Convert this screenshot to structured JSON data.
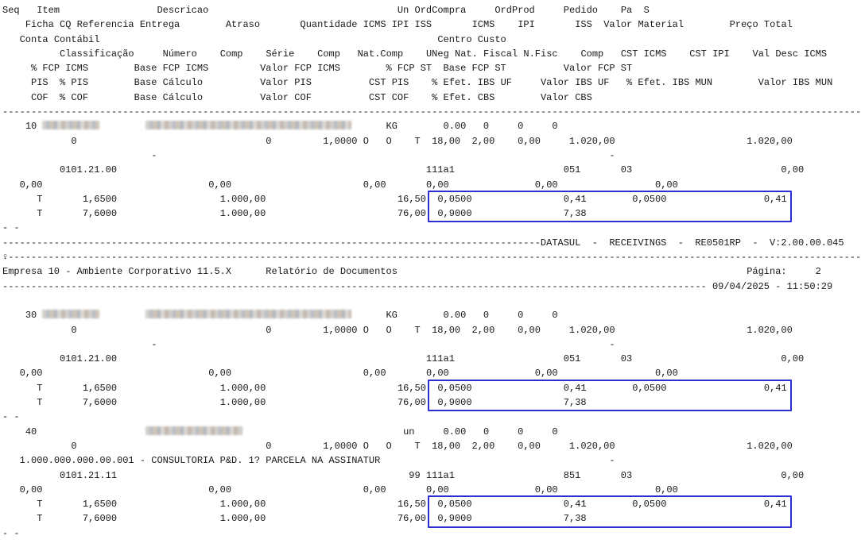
{
  "report": {
    "system_banner": "DATASUL  -  RECEIVINGS  -  RE0501RP  -  V:2.00.00.045",
    "company_line": "Empresa 10 - Ambiente Corporativo 11.5.X",
    "report_title": "Relatório de Documentos",
    "page_label": "Página:",
    "page_number": "2",
    "datetime": "09/04/2025 - 11:50:29",
    "highlight_color": "#2d2dd2",
    "highlight_boxes": [
      {
        "line_from": 13,
        "line_to": 14
      },
      {
        "line_from": 26,
        "line_to": 27
      },
      {
        "line_from": 34,
        "line_to": 35
      }
    ],
    "lines": [
      {
        "s": [
          {
            "t": "Seq"
          },
          {
            "p": 3
          },
          {
            "t": "Item"
          },
          {
            "p": 17
          },
          {
            "t": "Descricao"
          },
          {
            "p": 33
          },
          {
            "t": "Un OrdCompra"
          },
          {
            "p": 5
          },
          {
            "t": "OrdProd"
          },
          {
            "p": 5
          },
          {
            "t": "Pedido"
          },
          {
            "p": 4
          },
          {
            "t": "Pa"
          },
          {
            "p": 2
          },
          {
            "t": "S"
          }
        ]
      },
      {
        "s": [
          {
            "p": 4
          },
          {
            "t": "Ficha CQ Referencia Entrega"
          },
          {
            "p": 8
          },
          {
            "t": "Atraso"
          },
          {
            "p": 7
          },
          {
            "t": "Quantidade ICMS IPI ISS"
          },
          {
            "p": 7
          },
          {
            "t": "ICMS"
          },
          {
            "p": 4
          },
          {
            "t": "IPI"
          },
          {
            "p": 7
          },
          {
            "t": "ISS"
          },
          {
            "p": 2
          },
          {
            "t": "Valor Material"
          },
          {
            "p": 8
          },
          {
            "t": "Preço Total"
          }
        ]
      },
      {
        "s": [
          {
            "p": 3
          },
          {
            "t": "Conta Contábil"
          },
          {
            "p": 59
          },
          {
            "t": "Centro Custo"
          }
        ]
      },
      {
        "s": [
          {
            "p": 10
          },
          {
            "t": "Classificação"
          },
          {
            "p": 5
          },
          {
            "t": "Número"
          },
          {
            "p": 4
          },
          {
            "t": "Comp"
          },
          {
            "p": 4
          },
          {
            "t": "Série"
          },
          {
            "p": 4
          },
          {
            "t": "Comp"
          },
          {
            "p": 3
          },
          {
            "t": "Nat.Comp"
          },
          {
            "p": 4
          },
          {
            "t": "UNeg Nat. Fiscal N.Fisc"
          },
          {
            "p": 4
          },
          {
            "t": "Comp"
          },
          {
            "p": 3
          },
          {
            "t": "CST ICMS"
          },
          {
            "p": 4
          },
          {
            "t": "CST IPI"
          },
          {
            "p": 4
          },
          {
            "t": "Val Desc ICMS"
          }
        ]
      },
      {
        "s": [
          {
            "p": 5
          },
          {
            "t": "% FCP ICMS"
          },
          {
            "p": 8
          },
          {
            "t": "Base FCP ICMS"
          },
          {
            "p": 9
          },
          {
            "t": "Valor FCP ICMS"
          },
          {
            "p": 8
          },
          {
            "t": "% FCP ST"
          },
          {
            "p": 2
          },
          {
            "t": "Base FCP ST"
          },
          {
            "p": 10
          },
          {
            "t": "Valor FCP ST"
          }
        ]
      },
      {
        "s": [
          {
            "p": 5
          },
          {
            "t": "PIS"
          },
          {
            "p": 2
          },
          {
            "t": "% PIS"
          },
          {
            "p": 8
          },
          {
            "t": "Base Cálculo"
          },
          {
            "p": 10
          },
          {
            "t": "Valor PIS"
          },
          {
            "p": 10
          },
          {
            "t": "CST PIS"
          },
          {
            "p": 4
          },
          {
            "t": "% Efet. IBS UF"
          },
          {
            "p": 5
          },
          {
            "t": "Valor IBS UF"
          },
          {
            "p": 3
          },
          {
            "t": "% Efet. IBS MUN"
          },
          {
            "p": 8
          },
          {
            "t": "Valor IBS MUN"
          }
        ]
      },
      {
        "s": [
          {
            "p": 5
          },
          {
            "t": "COF"
          },
          {
            "p": 2
          },
          {
            "t": "% COF"
          },
          {
            "p": 8
          },
          {
            "t": "Base Cálculo"
          },
          {
            "p": 10
          },
          {
            "t": "Valor COF"
          },
          {
            "p": 10
          },
          {
            "t": "CST COF"
          },
          {
            "p": 4
          },
          {
            "t": "% Efet. CBS"
          },
          {
            "p": 8
          },
          {
            "t": "Valor CBS"
          }
        ]
      },
      {
        "s": [
          {
            "d": 150
          }
        ]
      },
      {
        "s": [
          {
            "p": 4
          },
          {
            "t": "10"
          },
          {
            "p": 1
          },
          {
            "b": 10
          },
          {
            "p": 8
          },
          {
            "b": 36
          },
          {
            "p": 6
          },
          {
            "t": "KG"
          },
          {
            "p": 8
          },
          {
            "t": "0.00"
          },
          {
            "p": 3
          },
          {
            "t": "0"
          },
          {
            "p": 5
          },
          {
            "t": "0"
          },
          {
            "p": 5
          },
          {
            "t": "0"
          }
        ]
      },
      {
        "s": [
          {
            "p": 12
          },
          {
            "t": "0"
          },
          {
            "p": 33
          },
          {
            "t": "0"
          },
          {
            "p": 9
          },
          {
            "t": "1,0000 O   O    T  18,00  2,00    0,00     1.020,00"
          },
          {
            "p": 23
          },
          {
            "t": "1.020,00"
          }
        ]
      },
      {
        "s": [
          {
            "p": 26
          },
          {
            "t": "-"
          },
          {
            "p": 79
          },
          {
            "t": "-"
          }
        ]
      },
      {
        "s": [
          {
            "p": 10
          },
          {
            "t": "0101.21.00"
          },
          {
            "p": 54
          },
          {
            "t": "111a1"
          },
          {
            "p": 19
          },
          {
            "t": "051"
          },
          {
            "p": 7
          },
          {
            "t": "03"
          },
          {
            "p": 26
          },
          {
            "t": "0,00"
          }
        ]
      },
      {
        "s": [
          {
            "p": 3
          },
          {
            "t": "0,00"
          },
          {
            "p": 29
          },
          {
            "t": "0,00"
          },
          {
            "p": 23
          },
          {
            "t": "0,00"
          },
          {
            "p": 7
          },
          {
            "t": "0,00"
          },
          {
            "p": 15
          },
          {
            "t": "0,00"
          },
          {
            "p": 17
          },
          {
            "t": "0,00"
          }
        ]
      },
      {
        "s": [
          {
            "p": 6
          },
          {
            "t": "T"
          },
          {
            "p": 7
          },
          {
            "t": "1,6500"
          },
          {
            "p": 18
          },
          {
            "t": "1.000,00"
          },
          {
            "p": 23
          },
          {
            "t": "16,50"
          },
          {
            "p": 2
          },
          {
            "t": "0,0500"
          },
          {
            "p": 16
          },
          {
            "t": "0,41"
          },
          {
            "p": 8
          },
          {
            "t": "0,0500"
          },
          {
            "p": 17
          },
          {
            "t": "0,41"
          }
        ]
      },
      {
        "s": [
          {
            "p": 6
          },
          {
            "t": "T"
          },
          {
            "p": 7
          },
          {
            "t": "7,6000"
          },
          {
            "p": 18
          },
          {
            "t": "1.000,00"
          },
          {
            "p": 23
          },
          {
            "t": "76,00"
          },
          {
            "p": 2
          },
          {
            "t": "0,9000"
          },
          {
            "p": 16
          },
          {
            "t": "7,38"
          }
        ]
      },
      {
        "s": [
          {
            "t": "- -"
          }
        ]
      },
      {
        "s": [
          {
            "d": 94
          },
          {
            "t": "DATASUL  -  RECEIVINGS  -  RE0501RP  -  V:2.00.00.045"
          }
        ]
      },
      {
        "s": [
          {
            "t": "♀"
          },
          {
            "d": 149
          }
        ]
      },
      {
        "s": [
          {
            "t": "Empresa 10 - Ambiente Corporativo 11.5.X"
          },
          {
            "p": 6
          },
          {
            "t": "Relatório de Documentos"
          },
          {
            "p": 61
          },
          {
            "t": "Página:"
          },
          {
            "p": 5
          },
          {
            "t": "2"
          }
        ]
      },
      {
        "s": [
          {
            "d": 123
          },
          {
            "p": 1
          },
          {
            "t": "09/04/2025 - 11:50:29"
          }
        ]
      },
      {
        "s": []
      },
      {
        "s": [
          {
            "p": 4
          },
          {
            "t": "30"
          },
          {
            "p": 1
          },
          {
            "b": 10
          },
          {
            "p": 8
          },
          {
            "b": 36
          },
          {
            "p": 6
          },
          {
            "t": "KG"
          },
          {
            "p": 8
          },
          {
            "t": "0.00"
          },
          {
            "p": 3
          },
          {
            "t": "0"
          },
          {
            "p": 5
          },
          {
            "t": "0"
          },
          {
            "p": 5
          },
          {
            "t": "0"
          }
        ]
      },
      {
        "s": [
          {
            "p": 12
          },
          {
            "t": "0"
          },
          {
            "p": 33
          },
          {
            "t": "0"
          },
          {
            "p": 9
          },
          {
            "t": "1,0000 O   O    T  18,00  2,00    0,00     1.020,00"
          },
          {
            "p": 23
          },
          {
            "t": "1.020,00"
          }
        ]
      },
      {
        "s": [
          {
            "p": 26
          },
          {
            "t": "-"
          },
          {
            "p": 79
          },
          {
            "t": "-"
          }
        ]
      },
      {
        "s": [
          {
            "p": 10
          },
          {
            "t": "0101.21.00"
          },
          {
            "p": 54
          },
          {
            "t": "111a1"
          },
          {
            "p": 19
          },
          {
            "t": "051"
          },
          {
            "p": 7
          },
          {
            "t": "03"
          },
          {
            "p": 26
          },
          {
            "t": "0,00"
          }
        ]
      },
      {
        "s": [
          {
            "p": 3
          },
          {
            "t": "0,00"
          },
          {
            "p": 29
          },
          {
            "t": "0,00"
          },
          {
            "p": 23
          },
          {
            "t": "0,00"
          },
          {
            "p": 7
          },
          {
            "t": "0,00"
          },
          {
            "p": 15
          },
          {
            "t": "0,00"
          },
          {
            "p": 17
          },
          {
            "t": "0,00"
          }
        ]
      },
      {
        "s": [
          {
            "p": 6
          },
          {
            "t": "T"
          },
          {
            "p": 7
          },
          {
            "t": "1,6500"
          },
          {
            "p": 18
          },
          {
            "t": "1.000,00"
          },
          {
            "p": 23
          },
          {
            "t": "16,50"
          },
          {
            "p": 2
          },
          {
            "t": "0,0500"
          },
          {
            "p": 16
          },
          {
            "t": "0,41"
          },
          {
            "p": 8
          },
          {
            "t": "0,0500"
          },
          {
            "p": 17
          },
          {
            "t": "0,41"
          }
        ]
      },
      {
        "s": [
          {
            "p": 6
          },
          {
            "t": "T"
          },
          {
            "p": 7
          },
          {
            "t": "7,6000"
          },
          {
            "p": 18
          },
          {
            "t": "1.000,00"
          },
          {
            "p": 23
          },
          {
            "t": "76,00"
          },
          {
            "p": 2
          },
          {
            "t": "0,9000"
          },
          {
            "p": 16
          },
          {
            "t": "7,38"
          }
        ]
      },
      {
        "s": [
          {
            "t": "- -"
          }
        ]
      },
      {
        "s": [
          {
            "p": 4
          },
          {
            "t": "40"
          },
          {
            "p": 19
          },
          {
            "b": 17
          },
          {
            "p": 28
          },
          {
            "t": "un"
          },
          {
            "p": 5
          },
          {
            "t": "0.00"
          },
          {
            "p": 3
          },
          {
            "t": "0"
          },
          {
            "p": 5
          },
          {
            "t": "0"
          },
          {
            "p": 5
          },
          {
            "t": "0"
          }
        ]
      },
      {
        "s": [
          {
            "p": 12
          },
          {
            "t": "0"
          },
          {
            "p": 33
          },
          {
            "t": "0"
          },
          {
            "p": 9
          },
          {
            "t": "1,0000 O   O    T  18,00  2,00    0,00     1.020,00"
          },
          {
            "p": 23
          },
          {
            "t": "1.020,00"
          }
        ]
      },
      {
        "s": [
          {
            "p": 3
          },
          {
            "t": "1.000.000.000.00.001 - CONSULTORIA P&D. 1? PARCELA NA ASSINATUR"
          },
          {
            "p": 40
          },
          {
            "t": "-"
          }
        ]
      },
      {
        "s": [
          {
            "p": 10
          },
          {
            "t": "0101.21.11"
          },
          {
            "p": 51
          },
          {
            "t": "99 111a1"
          },
          {
            "p": 19
          },
          {
            "t": "851"
          },
          {
            "p": 7
          },
          {
            "t": "03"
          },
          {
            "p": 26
          },
          {
            "t": "0,00"
          }
        ]
      },
      {
        "s": [
          {
            "p": 3
          },
          {
            "t": "0,00"
          },
          {
            "p": 29
          },
          {
            "t": "0,00"
          },
          {
            "p": 23
          },
          {
            "t": "0,00"
          },
          {
            "p": 7
          },
          {
            "t": "0,00"
          },
          {
            "p": 15
          },
          {
            "t": "0,00"
          },
          {
            "p": 17
          },
          {
            "t": "0,00"
          }
        ]
      },
      {
        "s": [
          {
            "p": 6
          },
          {
            "t": "T"
          },
          {
            "p": 7
          },
          {
            "t": "1,6500"
          },
          {
            "p": 18
          },
          {
            "t": "1.000,00"
          },
          {
            "p": 23
          },
          {
            "t": "16,50"
          },
          {
            "p": 2
          },
          {
            "t": "0,0500"
          },
          {
            "p": 16
          },
          {
            "t": "0,41"
          },
          {
            "p": 8
          },
          {
            "t": "0,0500"
          },
          {
            "p": 17
          },
          {
            "t": "0,41"
          }
        ]
      },
      {
        "s": [
          {
            "p": 6
          },
          {
            "t": "T"
          },
          {
            "p": 7
          },
          {
            "t": "7,6000"
          },
          {
            "p": 18
          },
          {
            "t": "1.000,00"
          },
          {
            "p": 23
          },
          {
            "t": "76,00"
          },
          {
            "p": 2
          },
          {
            "t": "0,9000"
          },
          {
            "p": 16
          },
          {
            "t": "7,38"
          }
        ]
      },
      {
        "s": [
          {
            "t": "- -"
          }
        ]
      },
      {
        "s": []
      }
    ]
  }
}
